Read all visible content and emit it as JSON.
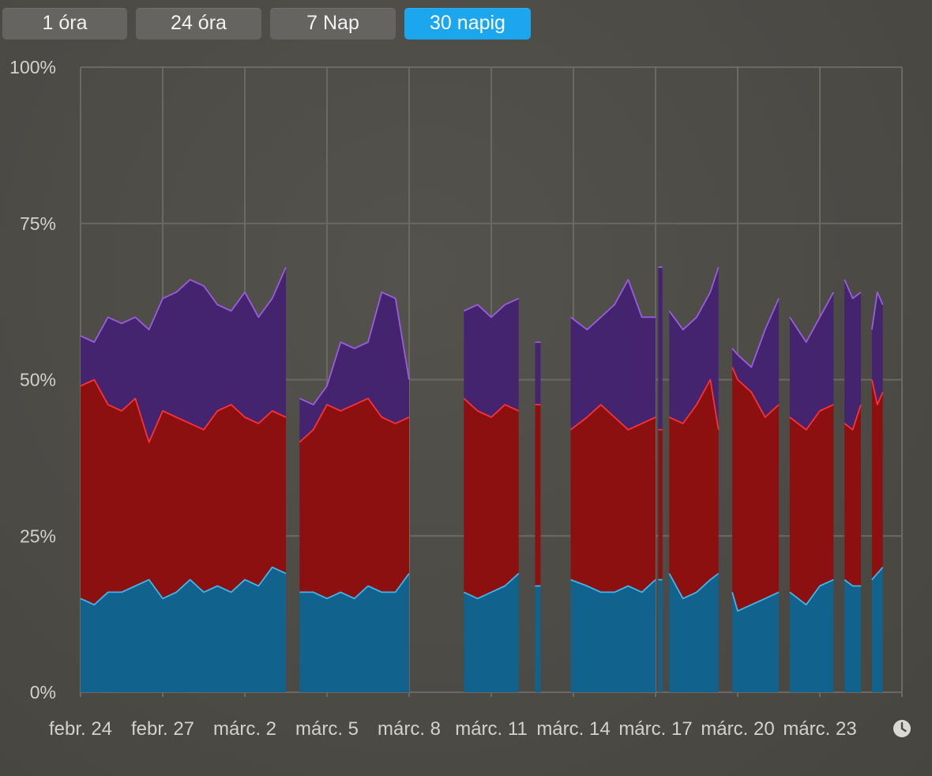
{
  "tabs": [
    {
      "label": "1 óra",
      "active": false
    },
    {
      "label": "24 óra",
      "active": false
    },
    {
      "label": "7 Nap",
      "active": false
    },
    {
      "label": "30 napig",
      "active": true
    }
  ],
  "colors": {
    "series_user": "#11628c",
    "series_user_line": "#3cb6ec",
    "series_system": "#8c1010",
    "series_system_line": "#ff3030",
    "series_top": "#44246f",
    "series_top_line": "#9a5ce0",
    "grid": "#6a6964",
    "tab_active": "#1ba6ee"
  },
  "clock_icon": "clock-icon",
  "chart_data": {
    "type": "area",
    "stacked": true,
    "title": "",
    "xlabel": "",
    "ylabel": "",
    "ylim": [
      0,
      100
    ],
    "yticks": [
      "0%",
      "25%",
      "50%",
      "75%",
      "100%"
    ],
    "yvalues": [
      0,
      25,
      50,
      75,
      100
    ],
    "xticks": [
      "febr. 24",
      "febr. 27",
      "márc. 2",
      "márc. 5",
      "márc. 8",
      "márc. 11",
      "márc. 14",
      "márc. 17",
      "márc. 20",
      "márc. 23"
    ],
    "xdomain": [
      0,
      30
    ],
    "xtick_positions": [
      0,
      3,
      6,
      9,
      12,
      15,
      18,
      21,
      24,
      27
    ],
    "grid": true,
    "segments": [
      {
        "x": [
          0,
          0.5,
          1,
          1.5,
          2,
          2.5,
          3,
          3.5,
          4,
          4.5,
          5,
          5.5,
          6,
          6.5,
          7,
          7.5
        ],
        "bottom": [
          15,
          14,
          16,
          16,
          17,
          18,
          15,
          16,
          18,
          16,
          17,
          16,
          18,
          17,
          20,
          19
        ],
        "middle": [
          49,
          50,
          46,
          45,
          47,
          40,
          45,
          44,
          43,
          42,
          45,
          46,
          44,
          43,
          45,
          44
        ],
        "top": [
          57,
          56,
          60,
          59,
          60,
          58,
          63,
          64,
          66,
          65,
          62,
          61,
          64,
          60,
          63,
          68
        ]
      },
      {
        "x": [
          8,
          8.5,
          9,
          9.5,
          10,
          10.5,
          11,
          11.5,
          12
        ],
        "bottom": [
          16,
          16,
          15,
          16,
          15,
          17,
          16,
          16,
          19
        ],
        "middle": [
          40,
          42,
          46,
          45,
          46,
          47,
          44,
          43,
          44
        ],
        "top": [
          47,
          46,
          49,
          56,
          55,
          56,
          64,
          63,
          50
        ]
      },
      {
        "x": [
          14,
          14.5,
          15,
          15.5,
          16
        ],
        "bottom": [
          16,
          15,
          16,
          17,
          19
        ],
        "middle": [
          47,
          45,
          44,
          46,
          45
        ],
        "top": [
          61,
          62,
          60,
          62,
          63
        ]
      },
      {
        "x": [
          16.6,
          16.8
        ],
        "bottom": [
          17,
          17
        ],
        "middle": [
          46,
          46
        ],
        "top": [
          56,
          56
        ]
      },
      {
        "x": [
          17.9,
          18.5,
          19,
          19.5,
          20,
          20.5,
          21
        ],
        "bottom": [
          18,
          17,
          16,
          16,
          17,
          16,
          18
        ],
        "middle": [
          42,
          44,
          46,
          44,
          42,
          43,
          44
        ],
        "top": [
          60,
          58,
          60,
          62,
          66,
          60,
          60
        ]
      },
      {
        "x": [
          21.1,
          21.25
        ],
        "bottom": [
          18,
          18
        ],
        "middle": [
          42,
          42
        ],
        "top": [
          68,
          68
        ]
      },
      {
        "x": [
          21.5,
          22,
          22.5,
          23,
          23.3
        ],
        "bottom": [
          19,
          15,
          16,
          18,
          19
        ],
        "middle": [
          44,
          43,
          46,
          50,
          42
        ],
        "top": [
          61,
          58,
          60,
          64,
          68
        ]
      },
      {
        "x": [
          23.8,
          24,
          24.5,
          25,
          25.5
        ],
        "bottom": [
          16,
          13,
          14,
          15,
          16
        ],
        "middle": [
          52,
          50,
          48,
          44,
          46
        ],
        "top": [
          55,
          54,
          52,
          58,
          63
        ]
      },
      {
        "x": [
          25.9,
          26.5,
          27,
          27.5
        ],
        "bottom": [
          16,
          14,
          17,
          18
        ],
        "middle": [
          44,
          42,
          45,
          46
        ],
        "top": [
          60,
          56,
          60,
          64
        ]
      },
      {
        "x": [
          27.9,
          28.2,
          28.5
        ],
        "bottom": [
          18,
          17,
          17
        ],
        "middle": [
          43,
          42,
          46
        ],
        "top": [
          66,
          63,
          64
        ]
      },
      {
        "x": [
          28.9,
          29.1,
          29.3
        ],
        "bottom": [
          18,
          19,
          20
        ],
        "middle": [
          50,
          46,
          48
        ],
        "top": [
          58,
          64,
          62
        ]
      }
    ]
  }
}
